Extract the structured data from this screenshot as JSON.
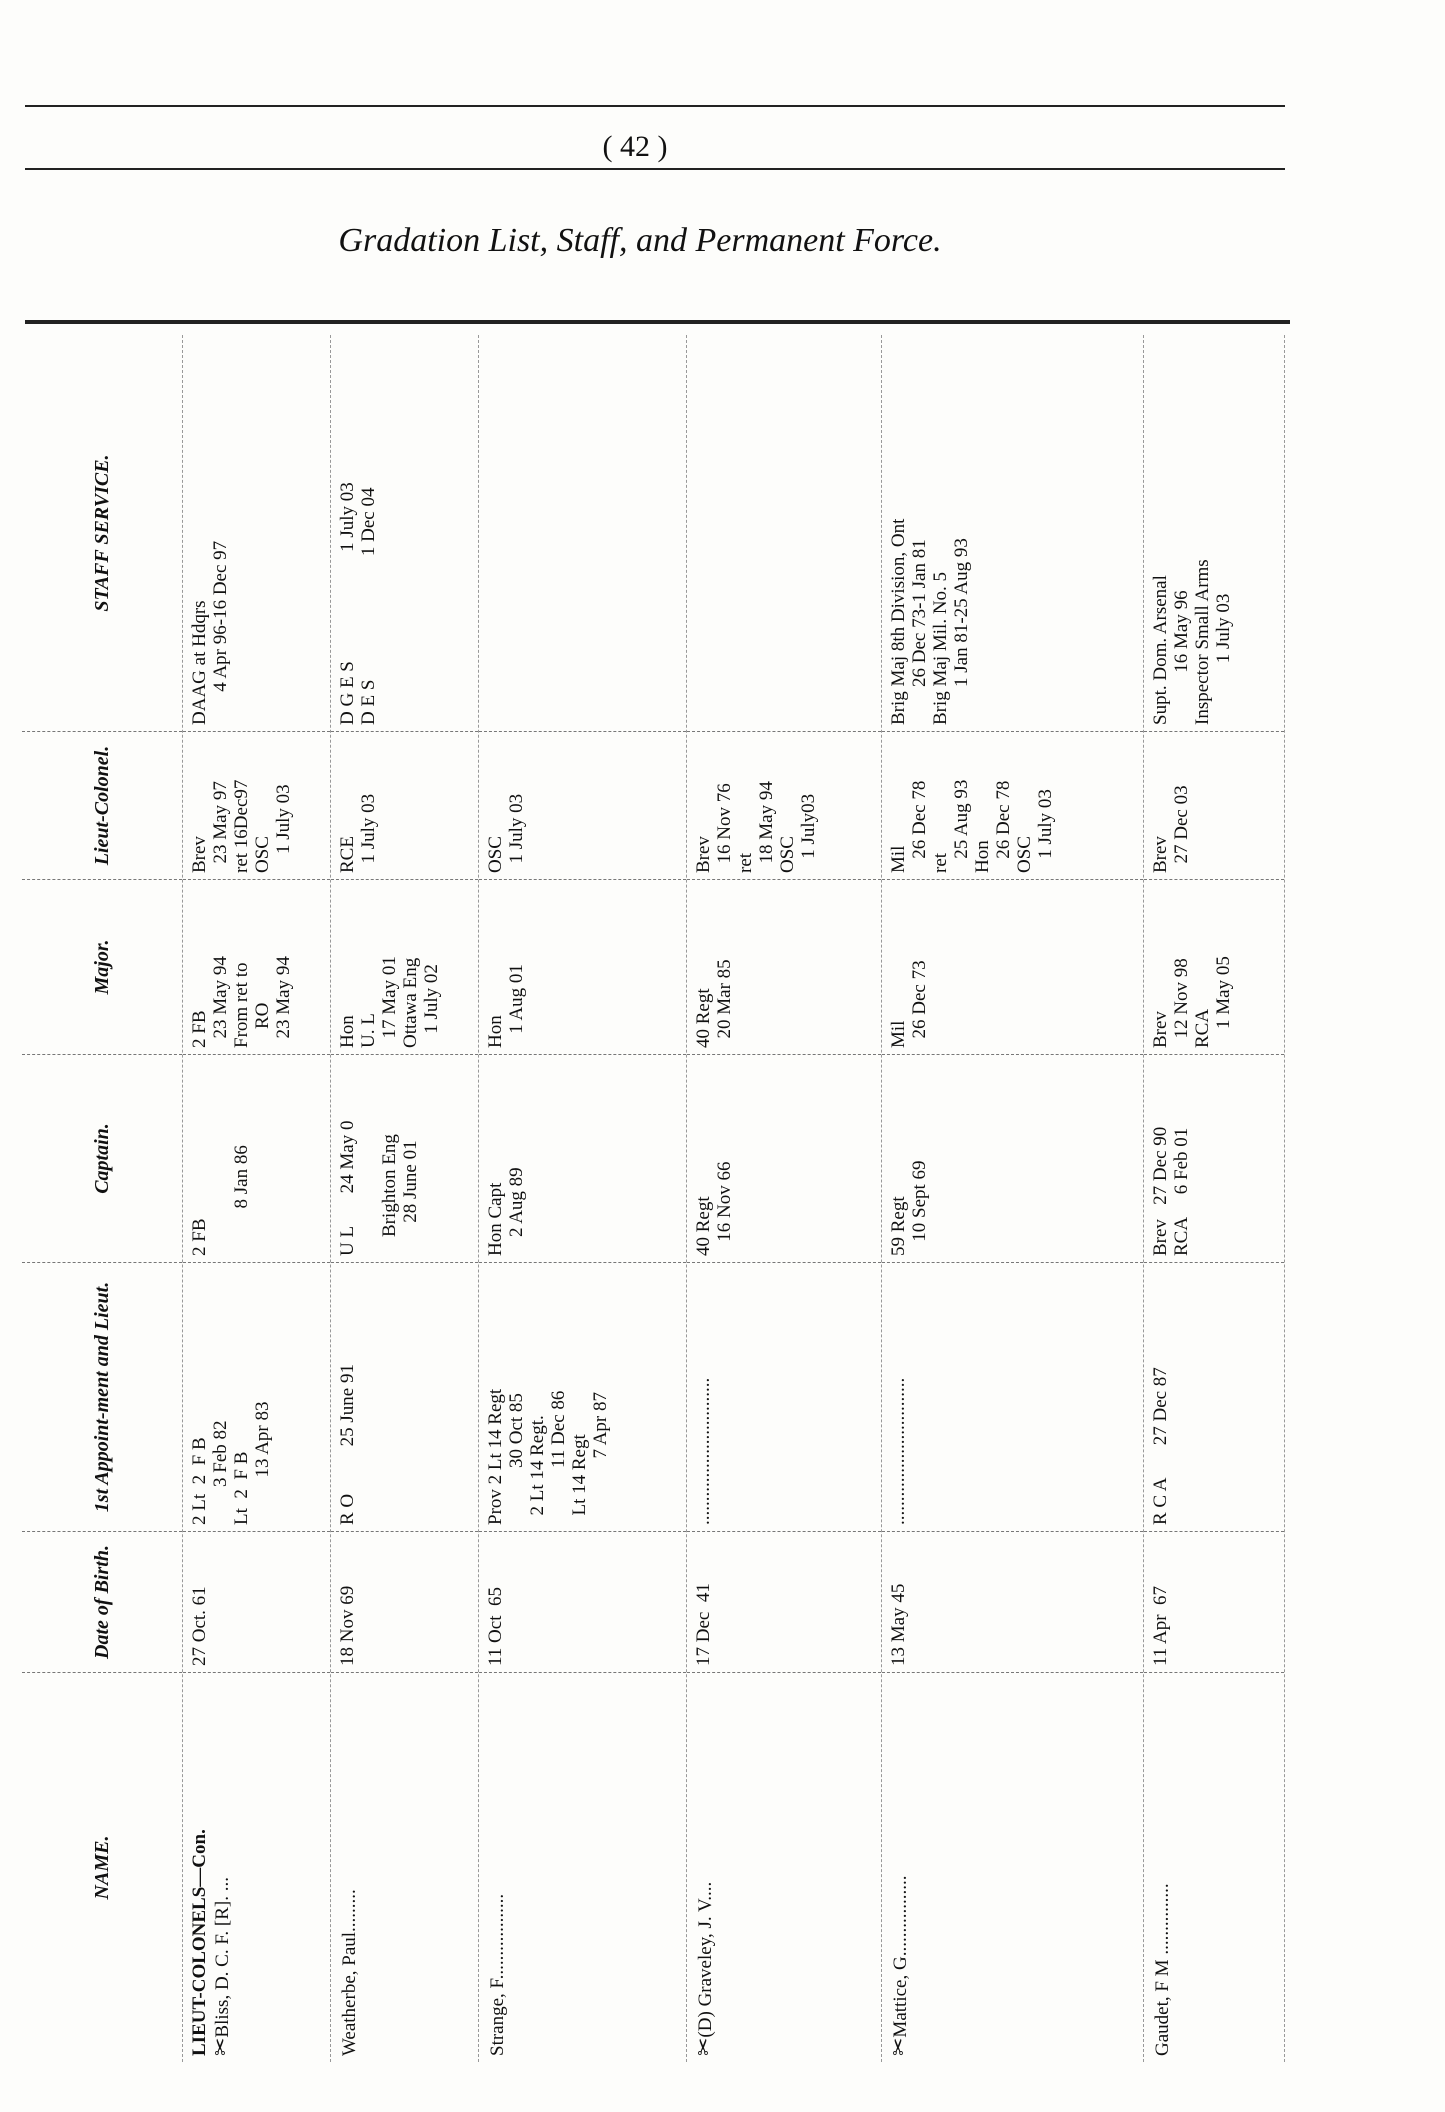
{
  "page_number": "( 42 )",
  "title": "Gradation List, Staff, and Permanent Force.",
  "columns": [
    "NAME.",
    "Date of Birth.",
    "1st Appoint-ment and Lieut.",
    "Captain.",
    "Major.",
    "Lieut-Colonel.",
    "STAFF SERVICE."
  ],
  "group_label": "LIEUT-COLONELS—Con.",
  "rows": [
    {
      "mark": "✂",
      "name": "Bliss, D. C. F. [R]. ...",
      "birth": "27 Oct. 61",
      "first": "2 Lt  2  F B\n        3 Feb 82\nLt  2  F B\n          13 Apr 83",
      "captain": "2 FB\n\n          8 Jan 86",
      "major": "2 FB\n  23 May 94\nFrom ret to\n    RO\n  23 May 94",
      "ltcol": "Brev\n  23 May 97\nret 16Dec97\nOSC\n    1 July 03",
      "staff": "DAAG at Hdqrs\n       4 Apr 96-16 Dec 97"
    },
    {
      "mark": "",
      "name": "Weatherbe, Paul.........",
      "birth": "18 Nov 69",
      "first": "R O          25 June 91",
      "captain": "U L       24 May 0\n\n    Brighton Eng\n       28 June 01",
      "major": "Hon\nU. L\n  17 May 01\nOttawa Eng\n   1 July 02",
      "ltcol": "RCE\n  1 July 03",
      "staff": "D G E S                       1 July 03\nD E S                          1 Dec 04"
    },
    {
      "mark": "",
      "name": "Strange, F..................",
      "birth": "11 Oct  65",
      "first": "Prov 2 Lt 14 Regt\n            30 Oct 85\n  2 Lt 14 Regt.\n            11 Dec 86\n  Lt 14 Regt\n              7 Apr 87",
      "captain": "Hon Capt\n    2 Aug 89",
      "major": "Hon\n   1 Aug 01",
      "ltcol": "OSC\n  1 July 03",
      "staff": ""
    },
    {
      "mark": "✂",
      "name": "(D) Graveley, J. V....",
      "birth": "17 Dec  41",
      "first": "...............................",
      "captain": "40 Regt\n   16 Nov 66",
      "major": "40 Regt\n  20 Mar 85",
      "ltcol": "Brev\n  16 Nov 76\nret\n  18 May 94\nOSC\n   1 July03",
      "staff": ""
    },
    {
      "mark": "✂",
      "name": "Mattice, G.................",
      "birth": "13 May 45",
      "first": "...............................",
      "captain": "59 Regt\n   10 Sept 69",
      "major": "Mil\n  26 Dec 73",
      "ltcol": "Mil\n   26 Dec 78\nret\n   25 Aug 93\nHon\n   26 Dec 78\nOSC\n   1 July 03",
      "staff": "Brig Maj 8th Division, Ont\n        26 Dec 73-1 Jan 81\nBrig Maj Mil. No. 5\n        1 Jan 81-25 Aug 93"
    },
    {
      "mark": "",
      "name": "Gaudet, F M ...............",
      "birth": "11 Apr  67",
      "first": "R C A       27 Dec 87",
      "captain": "Brev   27 Dec 90\nRCA     6 Feb 01",
      "major": "Brev\n  12 Nov 98\nRCA\n    1 May 05",
      "ltcol": "Brev\n  27 Dec 03",
      "staff": "Supt. Dom. Arsenal\n           16 May 96\nInspector Small Arms\n             1 July 03"
    }
  ]
}
